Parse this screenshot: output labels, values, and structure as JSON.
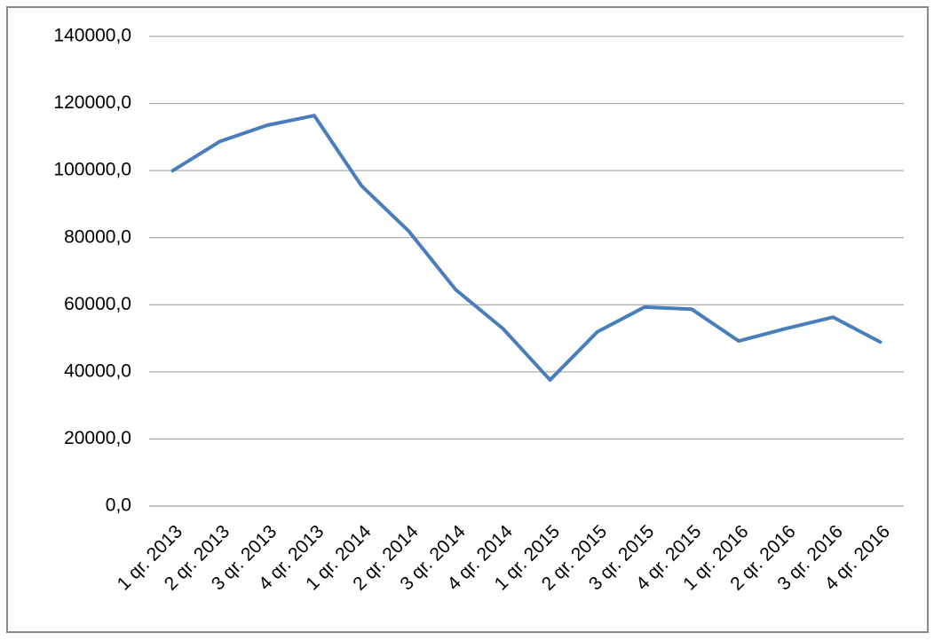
{
  "chart_data": {
    "type": "line",
    "categories": [
      "1 qr. 2013",
      "2 qr. 2013",
      "3 qr. 2013",
      "4 qr. 2013",
      "1 qr. 2014",
      "2 qr. 2014",
      "3 qr. 2014",
      "4 qr. 2014",
      "1 qr. 2015",
      "2 qr. 2015",
      "3 qr. 2015",
      "4 qr. 2015",
      "1 qr. 2016",
      "2 qr. 2016",
      "3 qr. 2016",
      "4 qr. 2016"
    ],
    "values": [
      100000,
      108700,
      113500,
      116400,
      95500,
      82000,
      64500,
      52900,
      37600,
      51900,
      59300,
      58700,
      49200,
      52900,
      56300,
      48900
    ],
    "color": "#4a7ebb",
    "ylim": [
      0,
      140000
    ],
    "yticks": [
      {
        "value": 0,
        "label": "0,0"
      },
      {
        "value": 20000,
        "label": "20000,0"
      },
      {
        "value": 40000,
        "label": "40000,0"
      },
      {
        "value": 60000,
        "label": "60000,0"
      },
      {
        "value": 80000,
        "label": "80000,0"
      },
      {
        "value": 100000,
        "label": "100000,0"
      },
      {
        "value": 120000,
        "label": "120000,0"
      },
      {
        "value": 140000,
        "label": "140000,0"
      }
    ],
    "grid": true
  }
}
